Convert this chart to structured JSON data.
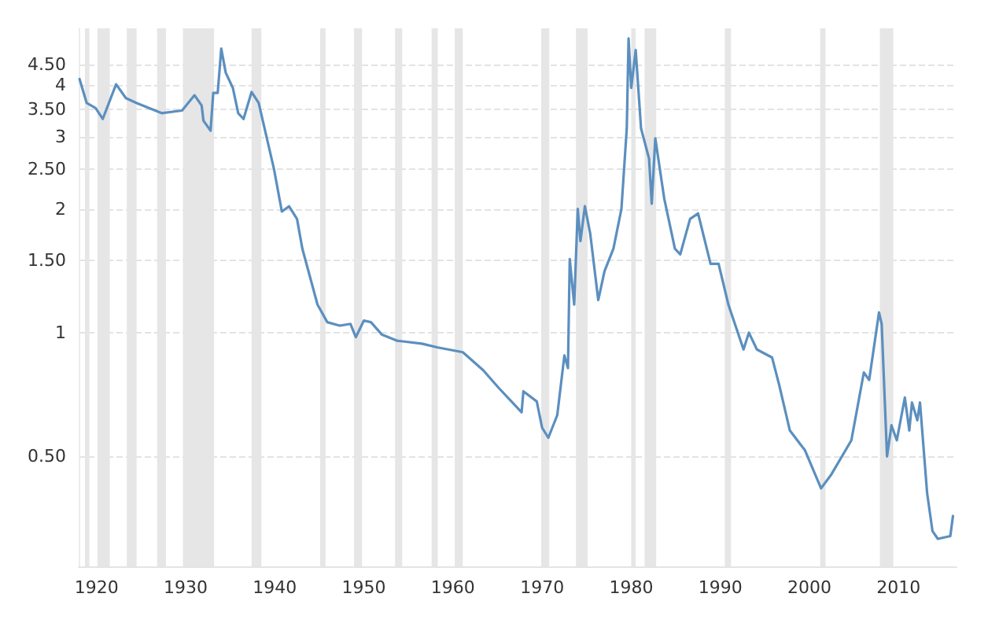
{
  "chart_data": {
    "type": "line",
    "log": "y",
    "grid": "y",
    "marker": "none",
    "line_style": "solid",
    "xlim": [
      1918,
      2016.5
    ],
    "xticks": [
      1920,
      1930,
      1940,
      1950,
      1960,
      1970,
      1980,
      1990,
      2000,
      2010
    ],
    "ylim": [
      0.27,
      5.5
    ],
    "yticks": [
      {
        "value": 0.5,
        "label": "0.50"
      },
      1,
      {
        "value": 1.5,
        "label": "1.50"
      },
      2,
      {
        "value": 2.5,
        "label": "2.50"
      },
      3,
      {
        "value": 3.5,
        "label": "3.50"
      },
      4,
      {
        "value": 4.5,
        "label": "4.50"
      }
    ],
    "series": [
      {
        "color": "#5b8fbf",
        "x": [
          1918.1,
          1918.9,
          1919.9,
          1920.7,
          1922.2,
          1923.3,
          1924.5,
          1927.3,
          1929.6,
          1931.0,
          1931.8,
          1932.0,
          1932.8,
          1933.1,
          1933.6,
          1934.0,
          1934.5,
          1935.3,
          1935.9,
          1936.5,
          1937.4,
          1938.2,
          1939.9,
          1940.8,
          1941.6,
          1942.5,
          1943.1,
          1944.8,
          1945.9,
          1947.3,
          1948.5,
          1949.1,
          1950.0,
          1950.8,
          1952.0,
          1953.7,
          1956.5,
          1958.3,
          1961.1,
          1963.4,
          1965.1,
          1967.7,
          1967.9,
          1969.4,
          1970.0,
          1970.7,
          1971.7,
          1972.5,
          1972.9,
          1973.1,
          1973.6,
          1974.0,
          1974.3,
          1974.8,
          1975.4,
          1976.3,
          1977.0,
          1978.0,
          1978.9,
          1979.5,
          1979.7,
          1980.0,
          1980.5,
          1981.1,
          1982.0,
          1982.3,
          1982.7,
          1983.7,
          1984.9,
          1985.5,
          1986.6,
          1987.5,
          1988.9,
          1989.8,
          1990.9,
          1992.6,
          1993.2,
          1994.1,
          1995.8,
          1996.6,
          1997.8,
          1999.5,
          2001.3,
          2002.4,
          2004.7,
          2006.1,
          2006.7,
          2007.8,
          2008.1,
          2008.7,
          2009.2,
          2009.8,
          2010.7,
          2011.2,
          2011.5,
          2012.1,
          2012.4,
          2013.2,
          2013.8,
          2014.4,
          2015.8,
          2016.1
        ],
        "values": [
          4.14,
          3.62,
          3.52,
          3.31,
          4.02,
          3.72,
          3.62,
          3.42,
          3.47,
          3.78,
          3.57,
          3.28,
          3.1,
          3.83,
          3.83,
          4.91,
          4.29,
          3.94,
          3.42,
          3.31,
          3.85,
          3.62,
          2.51,
          1.97,
          2.03,
          1.89,
          1.6,
          1.17,
          1.06,
          1.04,
          1.05,
          0.975,
          1.07,
          1.06,
          0.99,
          0.956,
          0.94,
          0.92,
          0.896,
          0.81,
          0.735,
          0.64,
          0.72,
          0.68,
          0.587,
          0.555,
          0.63,
          0.88,
          0.82,
          1.51,
          1.17,
          2.0,
          1.67,
          2.03,
          1.74,
          1.2,
          1.41,
          1.6,
          2.0,
          3.14,
          5.2,
          3.94,
          4.87,
          3.14,
          2.65,
          2.06,
          2.97,
          2.12,
          1.6,
          1.55,
          1.89,
          1.95,
          1.47,
          1.47,
          1.17,
          0.91,
          1.0,
          0.91,
          0.87,
          0.746,
          0.578,
          0.517,
          0.418,
          0.45,
          0.547,
          0.8,
          0.767,
          1.12,
          1.05,
          0.5,
          0.595,
          0.547,
          0.695,
          0.578,
          0.676,
          0.612,
          0.676,
          0.407,
          0.329,
          0.315,
          0.32,
          0.358
        ]
      }
    ],
    "bands": [
      {
        "axis": "x",
        "from": 1918.7,
        "to": 1919.2,
        "color": "#e6e6e6"
      },
      {
        "axis": "x",
        "from": 1920.1,
        "to": 1921.5,
        "color": "#e6e6e6"
      },
      {
        "axis": "x",
        "from": 1923.4,
        "to": 1924.5,
        "color": "#e6e6e6"
      },
      {
        "axis": "x",
        "from": 1926.8,
        "to": 1927.8,
        "color": "#e6e6e6"
      },
      {
        "axis": "x",
        "from": 1929.7,
        "to": 1933.2,
        "color": "#e6e6e6"
      },
      {
        "axis": "x",
        "from": 1937.4,
        "to": 1938.5,
        "color": "#e6e6e6"
      },
      {
        "axis": "x",
        "from": 1945.1,
        "to": 1945.7,
        "color": "#e6e6e6"
      },
      {
        "axis": "x",
        "from": 1948.9,
        "to": 1949.8,
        "color": "#e6e6e6"
      },
      {
        "axis": "x",
        "from": 1953.5,
        "to": 1954.3,
        "color": "#e6e6e6"
      },
      {
        "axis": "x",
        "from": 1957.6,
        "to": 1958.3,
        "color": "#e6e6e6"
      },
      {
        "axis": "x",
        "from": 1960.2,
        "to": 1961.1,
        "color": "#e6e6e6"
      },
      {
        "axis": "x",
        "from": 1969.9,
        "to": 1970.8,
        "color": "#e6e6e6"
      },
      {
        "axis": "x",
        "from": 1973.8,
        "to": 1975.1,
        "color": "#e6e6e6"
      },
      {
        "axis": "x",
        "from": 1980.0,
        "to": 1980.5,
        "color": "#e6e6e6"
      },
      {
        "axis": "x",
        "from": 1981.5,
        "to": 1982.8,
        "color": "#e6e6e6"
      },
      {
        "axis": "x",
        "from": 1990.5,
        "to": 1991.2,
        "color": "#e6e6e6"
      },
      {
        "axis": "x",
        "from": 2001.2,
        "to": 2001.8,
        "color": "#e6e6e6"
      },
      {
        "axis": "x",
        "from": 2007.9,
        "to": 2009.4,
        "color": "#e6e6e6"
      }
    ]
  }
}
